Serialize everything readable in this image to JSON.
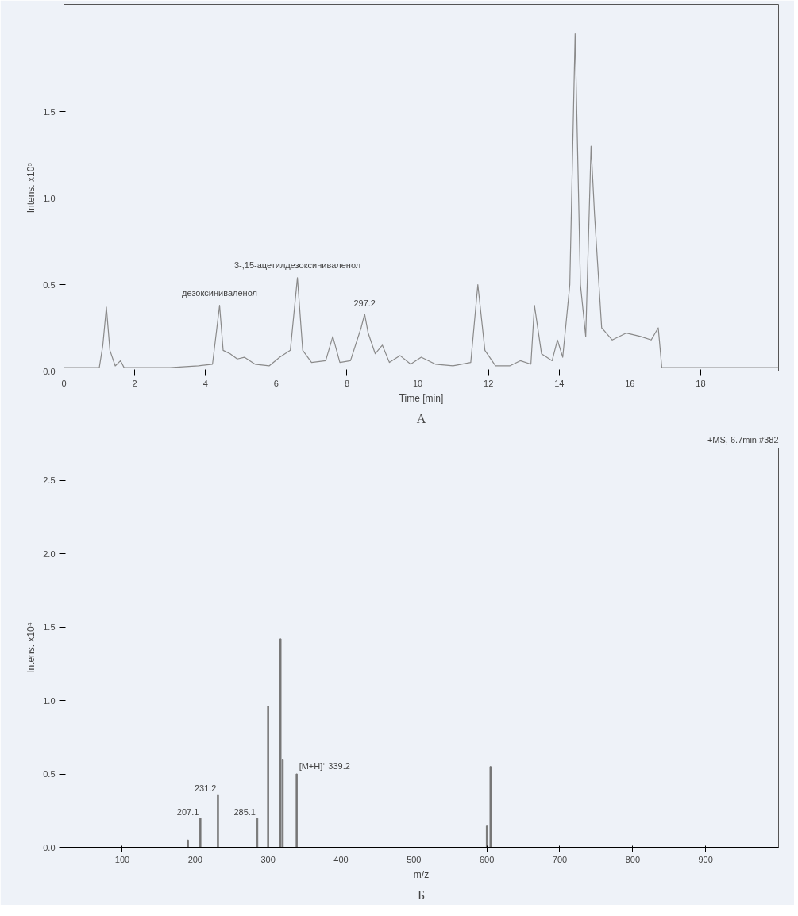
{
  "chart_data": [
    {
      "type": "line",
      "subtitle": "А",
      "xlabel": "Time [min]",
      "ylabel": "Intens. x10⁵",
      "xlim": [
        0,
        20.2
      ],
      "ylim": [
        0,
        2.12
      ],
      "xticks": [
        0,
        2,
        4,
        6,
        8,
        10,
        12,
        14,
        16,
        18
      ],
      "yticks": [
        {
          "value": 0,
          "label": "0.0"
        },
        0.5,
        {
          "value": 1,
          "label": "1.0"
        },
        1.5
      ],
      "series": [
        {
          "color": "#8a8a8a",
          "x": [
            0,
            1.0,
            1.1,
            1.2,
            1.3,
            1.45,
            1.6,
            1.7,
            2.0,
            3.0,
            3.8,
            4.2,
            4.4,
            4.5,
            4.7,
            4.9,
            5.1,
            5.4,
            5.8,
            6.1,
            6.4,
            6.6,
            6.75,
            7.0,
            7.4,
            7.6,
            7.8,
            8.1,
            8.4,
            8.5,
            8.6,
            8.8,
            9.0,
            9.2,
            9.5,
            9.8,
            10.1,
            10.5,
            11.0,
            11.5,
            11.7,
            11.9,
            12.2,
            12.6,
            12.9,
            13.2,
            13.3,
            13.5,
            13.8,
            13.95,
            14.1,
            14.3,
            14.45,
            14.6,
            14.75,
            14.9,
            15.0,
            15.2,
            15.5,
            15.9,
            16.3,
            16.6,
            16.8,
            16.9,
            17.5,
            18.5,
            19.5,
            20.2
          ],
          "values": [
            0.02,
            0.02,
            0.15,
            0.37,
            0.12,
            0.03,
            0.06,
            0.02,
            0.02,
            0.02,
            0.03,
            0.04,
            0.38,
            0.12,
            0.1,
            0.07,
            0.08,
            0.04,
            0.03,
            0.08,
            0.12,
            0.54,
            0.12,
            0.05,
            0.06,
            0.2,
            0.05,
            0.06,
            0.25,
            0.33,
            0.22,
            0.1,
            0.15,
            0.05,
            0.09,
            0.04,
            0.08,
            0.04,
            0.03,
            0.05,
            0.5,
            0.12,
            0.03,
            0.03,
            0.06,
            0.04,
            0.38,
            0.1,
            0.06,
            0.18,
            0.08,
            0.5,
            1.95,
            0.5,
            0.2,
            1.3,
            0.9,
            0.25,
            0.18,
            0.22,
            0.2,
            0.18,
            0.25,
            0.02,
            0.02,
            0.02,
            0.02,
            0.02
          ]
        }
      ],
      "annotations": [
        {
          "text": "дезоксиниваленол",
          "x": 4.4,
          "y": 0.38
        },
        {
          "text": "3-,15-ацетилдезоксиниваленол",
          "x": 6.6,
          "y": 0.54
        },
        {
          "text": "297.2",
          "x": 8.5,
          "y": 0.33
        }
      ]
    },
    {
      "type": "bar",
      "subtitle": "Б",
      "xlabel": "m/z",
      "ylabel": "Intens. x10⁴",
      "xlim": [
        20,
        1000
      ],
      "ylim": [
        0,
        2.72
      ],
      "xticks": [
        100,
        200,
        300,
        400,
        500,
        600,
        700,
        800,
        900
      ],
      "yticks": [
        {
          "value": 0,
          "label": "0.0"
        },
        0.5,
        {
          "value": 1,
          "label": "1.0"
        },
        1.5,
        {
          "value": 2,
          "label": "2.0"
        },
        2.5
      ],
      "series": [
        {
          "color": "#777777",
          "x": [
            190,
            207.1,
            231.2,
            285.1,
            300,
            317,
            320,
            339.2,
            600,
            605
          ],
          "values": [
            0.05,
            0.2,
            0.36,
            0.2,
            0.96,
            1.42,
            0.6,
            0.5,
            0.15,
            0.55
          ]
        }
      ],
      "annotations": [
        "+MS, 6.7min #382",
        {
          "text": "207.1",
          "x": 207.1,
          "y": 0.2
        },
        {
          "text": "231.2",
          "x": 231.2,
          "y": 0.36
        },
        {
          "text": "285.1",
          "x": 285.1,
          "y": 0.2
        },
        {
          "text": "[M+H]⁺ 339.2",
          "x": 339.2,
          "y": 0.5
        }
      ]
    }
  ]
}
